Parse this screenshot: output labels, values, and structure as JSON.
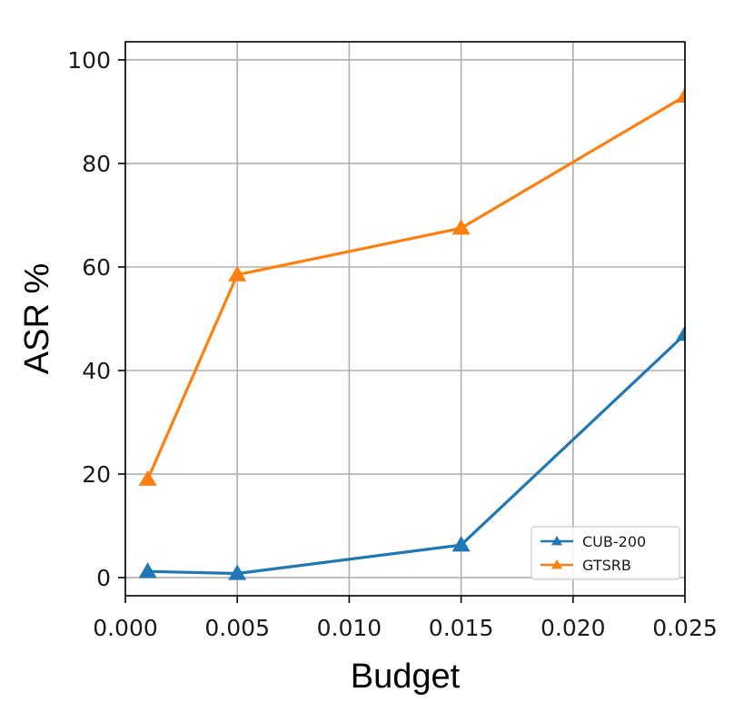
{
  "chart_data": {
    "type": "line",
    "xlabel": "Budget",
    "ylabel": "ASR %",
    "xlim": [
      0.0,
      0.025
    ],
    "ylim": [
      -3.5,
      103.5
    ],
    "xticks": [
      "0.000",
      "0.005",
      "0.010",
      "0.015",
      "0.020",
      "0.025"
    ],
    "yticks": [
      "0",
      "20",
      "40",
      "60",
      "80",
      "100"
    ],
    "grid": true,
    "legend_position": "bottom-right",
    "marker": "triangle",
    "x": [
      0.001,
      0.005,
      0.015,
      0.025
    ],
    "series": [
      {
        "name": "CUB-200",
        "color": "#1f77b4",
        "values": [
          1.2,
          0.8,
          6.3,
          47.0
        ]
      },
      {
        "name": "GTSRB",
        "color": "#ff7f0e",
        "values": [
          19.0,
          58.5,
          67.5,
          93.0
        ]
      }
    ]
  }
}
